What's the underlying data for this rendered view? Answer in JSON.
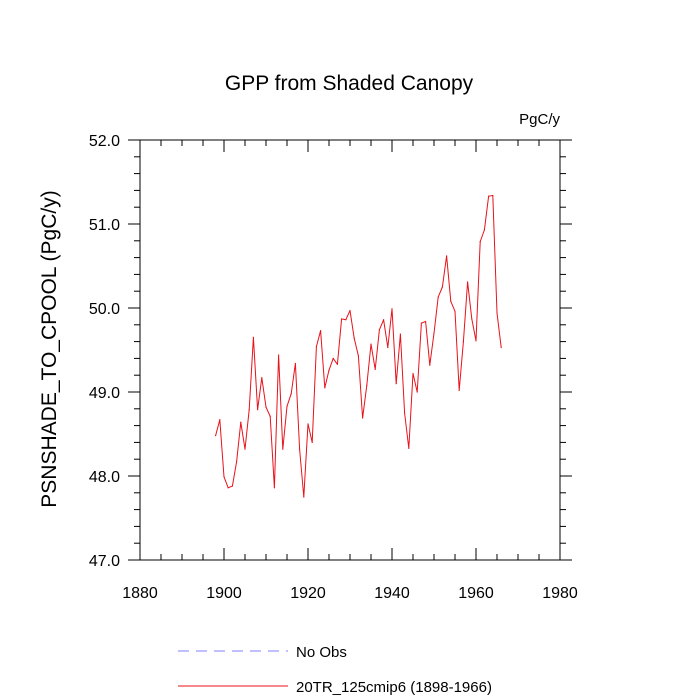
{
  "chart_data": {
    "type": "line",
    "title": "GPP from Shaded Canopy",
    "units": "PgC/y",
    "ylabel": "PSNSHADE_TO_CPOOL  (PgC/y)",
    "xlabel": "",
    "xlim": [
      1880,
      1980
    ],
    "ylim": [
      47.0,
      52.0
    ],
    "xticks": [
      1880,
      1900,
      1920,
      1940,
      1960,
      1980
    ],
    "yticks": [
      47.0,
      48.0,
      49.0,
      50.0,
      51.0,
      52.0
    ],
    "ytick_labels": [
      "47.0",
      "48.0",
      "49.0",
      "50.0",
      "51.0",
      "52.0"
    ],
    "legend": [
      {
        "label": "No Obs",
        "color": "#8080ff",
        "style": "dashed"
      },
      {
        "label": "20TR_125cmip6 (1898-1966)",
        "color": "#e8121a",
        "style": "solid"
      }
    ],
    "series": [
      {
        "name": "20TR_125cmip6 (1898-1966)",
        "color": "#e8121a",
        "x": [
          1898,
          1899,
          1900,
          1901,
          1902,
          1903,
          1904,
          1905,
          1906,
          1907,
          1908,
          1909,
          1910,
          1911,
          1912,
          1913,
          1914,
          1915,
          1916,
          1917,
          1918,
          1919,
          1920,
          1921,
          1922,
          1923,
          1924,
          1925,
          1926,
          1927,
          1928,
          1929,
          1930,
          1931,
          1932,
          1933,
          1934,
          1935,
          1936,
          1937,
          1938,
          1939,
          1940,
          1941,
          1942,
          1943,
          1944,
          1945,
          1946,
          1947,
          1948,
          1949,
          1950,
          1951,
          1952,
          1953,
          1954,
          1955,
          1956,
          1957,
          1958,
          1959,
          1960,
          1961,
          1962,
          1963,
          1964,
          1965,
          1966
        ],
        "y": [
          48.48,
          48.67,
          47.99,
          47.86,
          47.88,
          48.17,
          48.64,
          48.32,
          48.79,
          49.65,
          48.79,
          49.17,
          48.82,
          48.71,
          47.86,
          49.44,
          48.32,
          48.83,
          48.98,
          49.34,
          48.32,
          47.75,
          48.62,
          48.4,
          49.54,
          49.73,
          49.05,
          49.26,
          49.4,
          49.33,
          49.87,
          49.86,
          49.97,
          49.64,
          49.43,
          48.69,
          49.08,
          49.57,
          49.27,
          49.74,
          49.86,
          49.53,
          49.99,
          49.1,
          49.69,
          48.75,
          48.33,
          49.22,
          49.0,
          49.82,
          49.84,
          49.32,
          49.7,
          50.13,
          50.25,
          50.62,
          50.08,
          49.96,
          49.02,
          49.6,
          50.31,
          49.87,
          49.61,
          50.79,
          50.93,
          51.33,
          51.34,
          49.94,
          49.53
        ]
      }
    ]
  }
}
